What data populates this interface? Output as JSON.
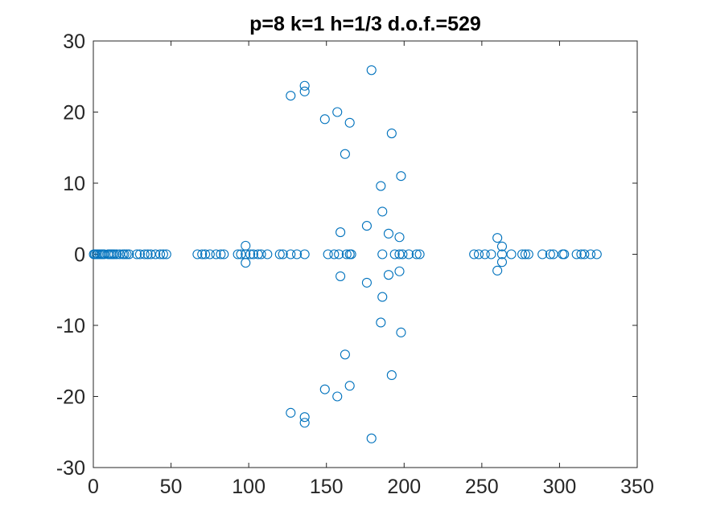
{
  "chart_data": {
    "type": "scatter",
    "title": "p=8 k=1 h=1/3 d.o.f.=529",
    "xlabel": "",
    "ylabel": "",
    "xlim": [
      0,
      350
    ],
    "ylim": [
      -30,
      30
    ],
    "xticks": [
      0,
      50,
      100,
      150,
      200,
      250,
      300,
      350
    ],
    "yticks": [
      -30,
      -20,
      -10,
      0,
      10,
      20,
      30
    ],
    "xtick_labels": [
      "0",
      "50",
      "100",
      "150",
      "200",
      "250",
      "300",
      "350"
    ],
    "ytick_labels": [
      "-30",
      "-20",
      "-10",
      "0",
      "10",
      "20",
      "30"
    ],
    "grid": false,
    "marker": "circle-open",
    "marker_color": "#0072BD",
    "series": [
      {
        "points": [
          [
            0.3,
            0
          ],
          [
            1.0,
            0
          ],
          [
            2.0,
            0
          ],
          [
            3.0,
            0
          ],
          [
            4.0,
            0
          ],
          [
            5.0,
            0
          ],
          [
            6.0,
            0
          ],
          [
            7.0,
            0
          ],
          [
            9.5,
            0
          ],
          [
            10.5,
            0
          ],
          [
            11.5,
            0
          ],
          [
            12.5,
            0
          ],
          [
            13.5,
            0
          ],
          [
            15.0,
            0
          ],
          [
            17.0,
            0
          ],
          [
            19.0,
            0
          ],
          [
            20.0,
            0
          ],
          [
            21.5,
            0
          ],
          [
            23.0,
            0
          ],
          [
            28.0,
            0
          ],
          [
            30.0,
            0
          ],
          [
            33.0,
            0
          ],
          [
            35.0,
            0
          ],
          [
            37.0,
            0
          ],
          [
            40.0,
            0
          ],
          [
            43.0,
            0
          ],
          [
            45.0,
            0
          ],
          [
            47.0,
            0
          ],
          [
            67.0,
            0
          ],
          [
            70.0,
            0
          ],
          [
            72.0,
            0
          ],
          [
            75.0,
            0
          ],
          [
            79.0,
            0
          ],
          [
            82.0,
            0
          ],
          [
            84.0,
            0
          ],
          [
            93.0,
            0
          ],
          [
            95.0,
            0
          ],
          [
            98.0,
            0
          ],
          [
            101.0,
            0
          ],
          [
            103.0,
            0
          ],
          [
            106.0,
            0
          ],
          [
            108.0,
            0
          ],
          [
            112.0,
            0
          ],
          [
            120.0,
            0
          ],
          [
            122.0,
            0
          ],
          [
            127.0,
            0
          ],
          [
            131.0,
            0
          ],
          [
            136.0,
            0
          ],
          [
            98.0,
            1.2
          ],
          [
            98.0,
            -1.2
          ],
          [
            127.0,
            22.3
          ],
          [
            127.0,
            -22.3
          ],
          [
            136.0,
            23.7
          ],
          [
            136.0,
            -23.7
          ],
          [
            136.0,
            22.9
          ],
          [
            136.0,
            -22.9
          ],
          [
            149.0,
            19.0
          ],
          [
            149.0,
            -19.0
          ],
          [
            157.0,
            20.0
          ],
          [
            157.0,
            -20.0
          ],
          [
            165.0,
            18.5
          ],
          [
            165.0,
            -18.5
          ],
          [
            179.0,
            25.9
          ],
          [
            179.0,
            -25.9
          ],
          [
            192.0,
            17.0
          ],
          [
            192.0,
            -17.0
          ],
          [
            162.0,
            14.1
          ],
          [
            162.0,
            -14.1
          ],
          [
            198.0,
            11.0
          ],
          [
            198.0,
            -11.0
          ],
          [
            185.0,
            9.6
          ],
          [
            185.0,
            -9.6
          ],
          [
            186.0,
            6.0
          ],
          [
            186.0,
            -6.0
          ],
          [
            176.0,
            4.0
          ],
          [
            176.0,
            -4.0
          ],
          [
            159.0,
            3.1
          ],
          [
            159.0,
            -3.1
          ],
          [
            190.0,
            2.9
          ],
          [
            190.0,
            -2.9
          ],
          [
            197.0,
            2.4
          ],
          [
            197.0,
            -2.4
          ],
          [
            151.0,
            0
          ],
          [
            155.0,
            0
          ],
          [
            158.0,
            0
          ],
          [
            163.0,
            0
          ],
          [
            165.0,
            0
          ],
          [
            166.0,
            0
          ],
          [
            186.0,
            0
          ],
          [
            194.0,
            0
          ],
          [
            197.0,
            0
          ],
          [
            199.0,
            0
          ],
          [
            203.0,
            0
          ],
          [
            208.0,
            0
          ],
          [
            210.0,
            0
          ],
          [
            245.0,
            0
          ],
          [
            248.0,
            0
          ],
          [
            252.0,
            0
          ],
          [
            256.0,
            0
          ],
          [
            260.0,
            2.3
          ],
          [
            260.0,
            -2.3
          ],
          [
            263.0,
            1.1
          ],
          [
            263.0,
            -1.1
          ],
          [
            263.0,
            0
          ],
          [
            269.0,
            0
          ],
          [
            276.0,
            0
          ],
          [
            278.0,
            0
          ],
          [
            280.0,
            0
          ],
          [
            289.0,
            0
          ],
          [
            294.0,
            0
          ],
          [
            296.0,
            0
          ],
          [
            302.0,
            0
          ],
          [
            303.0,
            0
          ],
          [
            311.0,
            0
          ],
          [
            314.0,
            0
          ],
          [
            316.0,
            0
          ],
          [
            320.0,
            0
          ],
          [
            324.0,
            0
          ]
        ]
      }
    ]
  }
}
